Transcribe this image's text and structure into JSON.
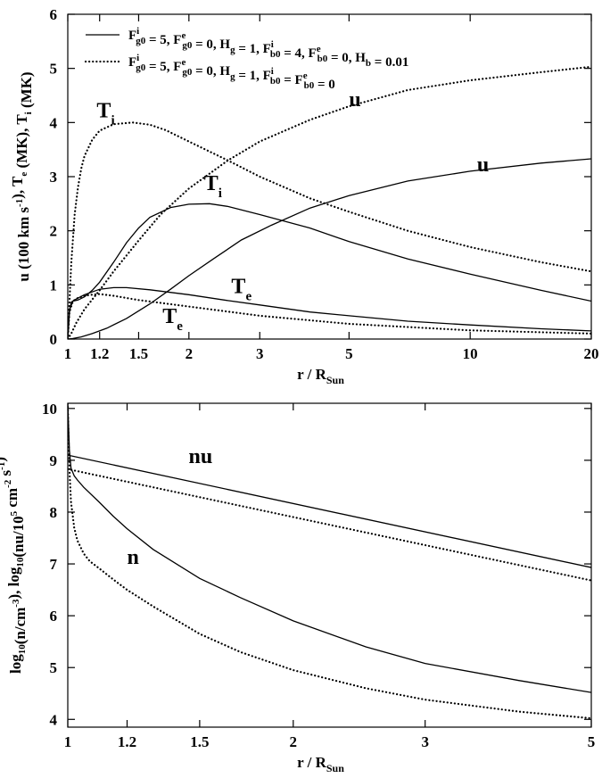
{
  "chart_data": [
    {
      "type": "line",
      "xscale": "log",
      "xlim": [
        1,
        20
      ],
      "ylim": [
        0,
        6
      ],
      "xlabel": {
        "main": "r / R",
        "sub": "Sun"
      },
      "ylabel": [
        {
          "t": "u (100 km s"
        },
        {
          "t": "-1",
          "sup": true
        },
        {
          "t": "), T"
        },
        {
          "t": "e",
          "sub": true
        },
        {
          "t": " (MK), T"
        },
        {
          "t": "i",
          "sub": true
        },
        {
          "t": " (MK)"
        }
      ],
      "xticks": [
        {
          "v": 1,
          "label": "1"
        },
        {
          "v": 1.2,
          "label": "1.2"
        },
        {
          "v": 1.5,
          "label": "1.5"
        },
        {
          "v": 2,
          "label": "2"
        },
        {
          "v": 3,
          "label": "3"
        },
        {
          "v": 5,
          "label": "5"
        },
        {
          "v": 10,
          "label": "10"
        },
        {
          "v": 20,
          "label": "20"
        }
      ],
      "yticks": [
        0,
        1,
        2,
        3,
        4,
        5,
        6
      ],
      "legend": {
        "position": "top",
        "entries": [
          {
            "style": "solid",
            "label": [
              {
                "t": "F"
              },
              {
                "t": "g0",
                "sub": true,
                "sup2": "i"
              },
              {
                "t": " = 5, F"
              },
              {
                "t": "g0",
                "sub": true,
                "sup2": "e"
              },
              {
                "t": " = 0, H"
              },
              {
                "t": "g",
                "sub": true
              },
              {
                "t": " = 1, F"
              },
              {
                "t": "b0",
                "sub": true,
                "sup2": "i"
              },
              {
                "t": " = 4, F"
              },
              {
                "t": "b0",
                "sub": true,
                "sup2": "e"
              },
              {
                "t": " = 0, H"
              },
              {
                "t": "b",
                "sub": true
              },
              {
                "t": " = 0.01"
              }
            ]
          },
          {
            "style": "dotted",
            "label": [
              {
                "t": "F"
              },
              {
                "t": "g0",
                "sub": true,
                "sup2": "i"
              },
              {
                "t": " = 5, F"
              },
              {
                "t": "g0",
                "sub": true,
                "sup2": "e"
              },
              {
                "t": " = 0, H"
              },
              {
                "t": "g",
                "sub": true
              },
              {
                "t": " = 1, F"
              },
              {
                "t": "b0",
                "sub": true,
                "sup2": "i"
              },
              {
                "t": " = F"
              },
              {
                "t": "b0",
                "sub": true,
                "sup2": "e"
              },
              {
                "t": " = 0"
              }
            ]
          }
        ]
      },
      "annotations": [
        {
          "main": "T",
          "sub": "i",
          "x": 1.18,
          "y": 4.1
        },
        {
          "main": "u",
          "x": 5.0,
          "y": 4.3
        },
        {
          "main": "T",
          "sub": "i",
          "x": 2.18,
          "y": 2.75
        },
        {
          "main": "u",
          "x": 10.4,
          "y": 3.1
        },
        {
          "main": "T",
          "sub": "e",
          "x": 2.55,
          "y": 0.85
        },
        {
          "main": "T",
          "sub": "e",
          "x": 1.72,
          "y": 0.3
        }
      ],
      "series": [
        {
          "name": "u",
          "style": "solid",
          "x": [
            1,
            1.03,
            1.08,
            1.15,
            1.25,
            1.4,
            1.6,
            1.8,
            2,
            2.3,
            2.7,
            3.2,
            4,
            5,
            7,
            10,
            15,
            20
          ],
          "y": [
            0,
            0.01,
            0.04,
            0.1,
            0.2,
            0.38,
            0.65,
            0.92,
            1.17,
            1.48,
            1.83,
            2.1,
            2.42,
            2.65,
            2.92,
            3.1,
            3.25,
            3.33
          ]
        },
        {
          "name": "T_i",
          "style": "solid",
          "x": [
            1,
            1.01,
            1.03,
            1.06,
            1.1,
            1.15,
            1.2,
            1.3,
            1.4,
            1.5,
            1.6,
            1.8,
            2,
            2.25,
            2.5,
            3,
            4,
            5,
            7,
            10,
            15,
            20
          ],
          "y": [
            0,
            0.55,
            0.7,
            0.72,
            0.78,
            0.9,
            1.05,
            1.42,
            1.78,
            2.05,
            2.25,
            2.43,
            2.49,
            2.5,
            2.45,
            2.3,
            2.05,
            1.8,
            1.48,
            1.2,
            0.9,
            0.7
          ]
        },
        {
          "name": "T_e",
          "style": "solid",
          "x": [
            1,
            1.01,
            1.02,
            1.05,
            1.1,
            1.2,
            1.3,
            1.4,
            1.6,
            2,
            2.5,
            3,
            4,
            5,
            7,
            10,
            15,
            20
          ],
          "y": [
            0,
            0.5,
            0.68,
            0.74,
            0.82,
            0.92,
            0.95,
            0.95,
            0.91,
            0.82,
            0.71,
            0.63,
            0.5,
            0.43,
            0.33,
            0.26,
            0.19,
            0.15
          ]
        },
        {
          "name": "u",
          "style": "dotted",
          "x": [
            1,
            1.02,
            1.05,
            1.1,
            1.2,
            1.3,
            1.5,
            1.7,
            2,
            2.5,
            3,
            4,
            5,
            7,
            10,
            15,
            20
          ],
          "y": [
            0,
            0.1,
            0.3,
            0.55,
            0.9,
            1.25,
            1.82,
            2.3,
            2.78,
            3.3,
            3.65,
            4.05,
            4.3,
            4.6,
            4.78,
            4.93,
            5.03
          ]
        },
        {
          "name": "T_i",
          "style": "dotted",
          "x": [
            1,
            1.01,
            1.02,
            1.04,
            1.06,
            1.08,
            1.1,
            1.15,
            1.2,
            1.3,
            1.45,
            1.6,
            1.75,
            2,
            2.5,
            3,
            4,
            5,
            7,
            10,
            15,
            20
          ],
          "y": [
            0,
            0.7,
            1.4,
            2.3,
            2.8,
            3.15,
            3.38,
            3.68,
            3.85,
            3.97,
            4.0,
            3.96,
            3.86,
            3.65,
            3.3,
            3.0,
            2.6,
            2.35,
            2.0,
            1.7,
            1.42,
            1.25
          ]
        },
        {
          "name": "T_e",
          "style": "dotted",
          "x": [
            1,
            1.01,
            1.03,
            1.06,
            1.1,
            1.15,
            1.2,
            1.3,
            1.5,
            2,
            3,
            5,
            10,
            20
          ],
          "y": [
            0,
            0.5,
            0.7,
            0.76,
            0.8,
            0.82,
            0.83,
            0.8,
            0.72,
            0.6,
            0.43,
            0.28,
            0.16,
            0.1
          ]
        }
      ]
    },
    {
      "type": "line",
      "xscale": "log",
      "xlim": [
        1,
        5
      ],
      "ylim": [
        3.85,
        10.1
      ],
      "xlabel": {
        "main": "r / R",
        "sub": "Sun"
      },
      "ylabel": [
        {
          "t": "log"
        },
        {
          "t": "10",
          "sub": true
        },
        {
          "t": "(n/cm"
        },
        {
          "t": "-3",
          "sup": true
        },
        {
          "t": "), log"
        },
        {
          "t": "10",
          "sub": true
        },
        {
          "t": "(nu/10"
        },
        {
          "t": "5",
          "sup": true
        },
        {
          "t": " cm"
        },
        {
          "t": "-2",
          "sup": true
        },
        {
          "t": " s"
        },
        {
          "t": "-1",
          "sup": true
        },
        {
          "t": ")"
        }
      ],
      "xticks": [
        {
          "v": 1,
          "label": "1"
        },
        {
          "v": 1.2,
          "label": "1.2"
        },
        {
          "v": 1.5,
          "label": "1.5"
        },
        {
          "v": 2,
          "label": "2"
        },
        {
          "v": 3,
          "label": "3"
        },
        {
          "v": 5,
          "label": "5"
        }
      ],
      "yticks": [
        4,
        5,
        6,
        7,
        8,
        9,
        10
      ],
      "annotations": [
        {
          "main": "nu",
          "x": 1.45,
          "y": 8.95
        },
        {
          "main": "n",
          "x": 1.2,
          "y": 7.0
        }
      ],
      "series": [
        {
          "name": "nu",
          "style": "solid",
          "x": [
            1,
            5
          ],
          "y": [
            9.1,
            6.93
          ]
        },
        {
          "name": "nu",
          "style": "dotted",
          "x": [
            1,
            5
          ],
          "y": [
            8.83,
            6.68
          ]
        },
        {
          "name": "n",
          "style": "solid",
          "x": [
            1,
            1.005,
            1.01,
            1.02,
            1.03,
            1.05,
            1.1,
            1.15,
            1.2,
            1.3,
            1.5,
            1.7,
            2,
            2.5,
            3,
            4,
            5
          ],
          "y": [
            10.1,
            9.2,
            8.85,
            8.7,
            8.62,
            8.48,
            8.2,
            7.92,
            7.68,
            7.28,
            6.72,
            6.35,
            5.9,
            5.4,
            5.08,
            4.75,
            4.52
          ]
        },
        {
          "name": "n",
          "style": "dotted",
          "x": [
            1,
            1.003,
            1.006,
            1.01,
            1.02,
            1.03,
            1.05,
            1.07,
            1.1,
            1.15,
            1.2,
            1.3,
            1.5,
            1.7,
            2,
            2.5,
            3,
            4,
            5
          ],
          "y": [
            10.1,
            9.3,
            8.7,
            8.2,
            7.7,
            7.45,
            7.2,
            7.05,
            6.92,
            6.7,
            6.5,
            6.18,
            5.65,
            5.3,
            4.95,
            4.6,
            4.38,
            4.15,
            4.02
          ]
        }
      ]
    }
  ]
}
